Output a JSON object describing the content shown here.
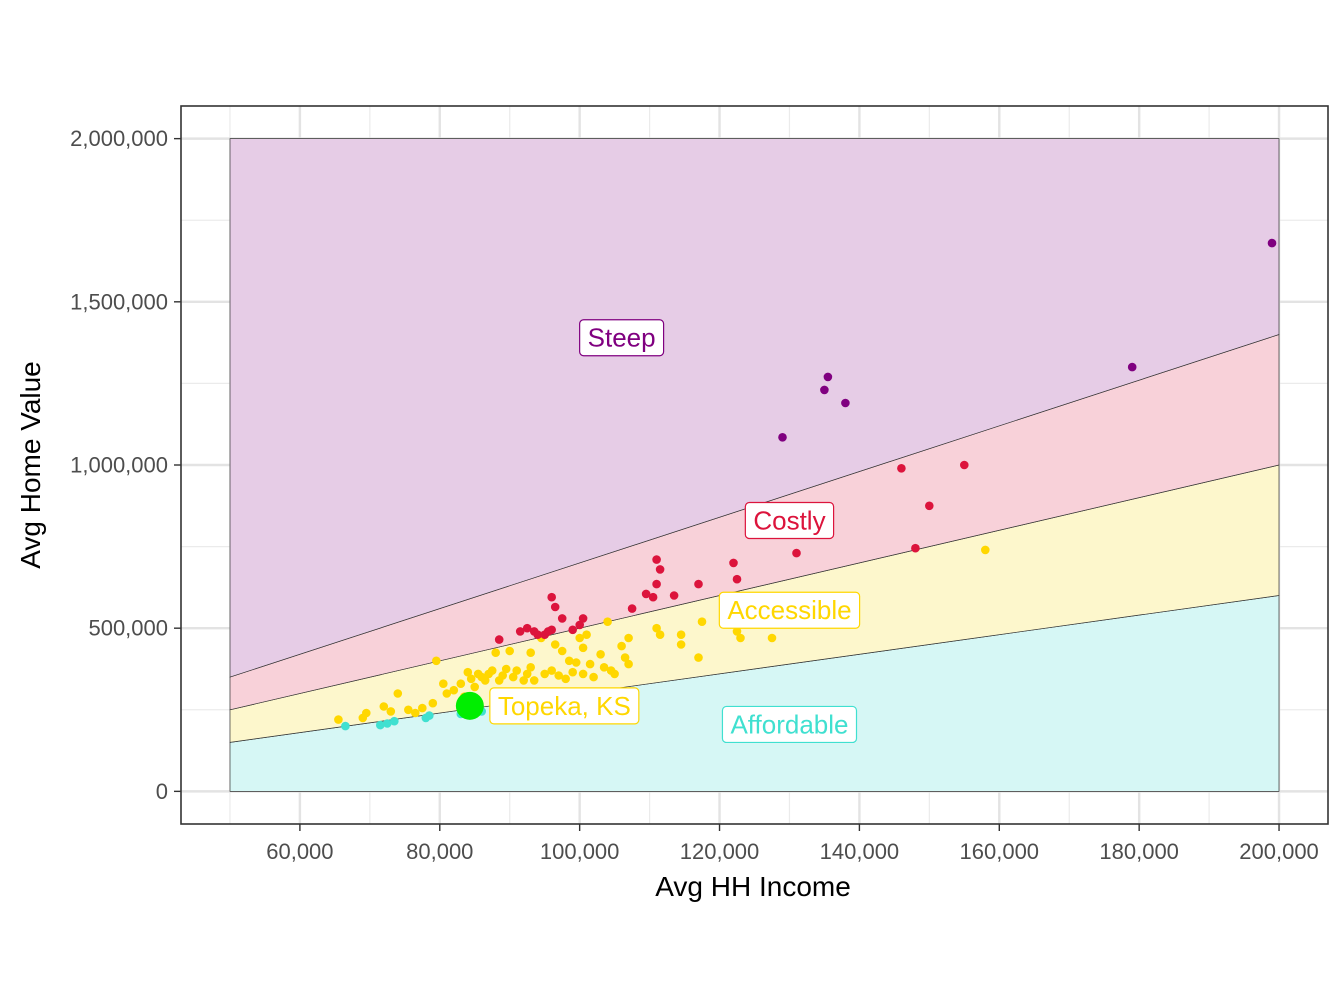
{
  "chart_data": {
    "type": "scatter",
    "title": "",
    "xlabel": "Avg HH Income",
    "ylabel": "Avg Home Value",
    "xlim": [
      43000,
      207000
    ],
    "ylim": [
      -100000,
      2100000
    ],
    "x_ticks": [
      60000,
      80000,
      100000,
      120000,
      140000,
      160000,
      180000,
      200000
    ],
    "x_tick_labels": [
      "60,000",
      "80,000",
      "100,000",
      "120,000",
      "140,000",
      "160,000",
      "180,000",
      "200,000"
    ],
    "y_ticks": [
      0,
      500000,
      1000000,
      1500000,
      2000000
    ],
    "y_tick_labels": [
      "0",
      "500,000",
      "1,000,000",
      "1,500,000",
      "2,000,000"
    ],
    "grid": true,
    "zones": [
      {
        "name": "Affordable",
        "x_range": [
          50000,
          200000
        ],
        "lower_ratio": 0,
        "upper_ratio": 3,
        "fill": "#d6f7f5",
        "text_color": "#40e0d0",
        "label_at": [
          130000,
          205000
        ]
      },
      {
        "name": "Accessible",
        "x_range": [
          50000,
          200000
        ],
        "lower_ratio": 3,
        "upper_ratio": 5,
        "fill": "#fdf7cc",
        "text_color": "#ffd700",
        "label_at": [
          130000,
          555000
        ]
      },
      {
        "name": "Costly",
        "x_range": [
          50000,
          200000
        ],
        "lower_ratio": 5,
        "upper_ratio": 7,
        "fill": "#f8d1d9",
        "text_color": "#dc143c",
        "label_at": [
          130000,
          830000
        ]
      },
      {
        "name": "Steep",
        "x_range": [
          50000,
          200000
        ],
        "lower_ratio": 7,
        "upper_value": 2000000,
        "fill": "#e6cce6",
        "text_color": "#800080",
        "label_at": [
          106000,
          1390000
        ]
      }
    ],
    "series": [
      {
        "name": "Affordable",
        "color": "#40e0d0",
        "points": [
          [
            66500,
            200000
          ],
          [
            71500,
            203000
          ],
          [
            72500,
            208000
          ],
          [
            73500,
            215000
          ],
          [
            78000,
            225000
          ],
          [
            78500,
            232000
          ],
          [
            83000,
            237000
          ],
          [
            86000,
            245000
          ]
        ]
      },
      {
        "name": "Accessible",
        "color": "#ffd700",
        "points": [
          [
            65500,
            220000
          ],
          [
            69000,
            225000
          ],
          [
            69500,
            240000
          ],
          [
            72000,
            260000
          ],
          [
            73000,
            245000
          ],
          [
            74000,
            300000
          ],
          [
            75500,
            250000
          ],
          [
            76500,
            240000
          ],
          [
            77500,
            255000
          ],
          [
            79000,
            270000
          ],
          [
            79500,
            400000
          ],
          [
            80500,
            330000
          ],
          [
            81000,
            300000
          ],
          [
            82000,
            310000
          ],
          [
            83000,
            330000
          ],
          [
            83500,
            290000
          ],
          [
            84000,
            365000
          ],
          [
            84500,
            345000
          ],
          [
            85000,
            320000
          ],
          [
            85500,
            360000
          ],
          [
            86000,
            350000
          ],
          [
            86500,
            340000
          ],
          [
            87000,
            360000
          ],
          [
            87500,
            370000
          ],
          [
            88000,
            425000
          ],
          [
            88500,
            340000
          ],
          [
            89000,
            355000
          ],
          [
            89500,
            375000
          ],
          [
            90000,
            430000
          ],
          [
            90500,
            350000
          ],
          [
            91000,
            370000
          ],
          [
            92000,
            340000
          ],
          [
            92500,
            360000
          ],
          [
            93000,
            425000
          ],
          [
            93000,
            380000
          ],
          [
            93500,
            340000
          ],
          [
            94500,
            470000
          ],
          [
            95000,
            360000
          ],
          [
            96000,
            370000
          ],
          [
            96500,
            450000
          ],
          [
            97000,
            355000
          ],
          [
            97500,
            430000
          ],
          [
            98000,
            345000
          ],
          [
            98500,
            400000
          ],
          [
            99000,
            365000
          ],
          [
            99500,
            395000
          ],
          [
            100000,
            470000
          ],
          [
            100500,
            440000
          ],
          [
            100500,
            360000
          ],
          [
            101000,
            480000
          ],
          [
            101500,
            390000
          ],
          [
            102000,
            350000
          ],
          [
            103000,
            420000
          ],
          [
            103500,
            380000
          ],
          [
            104000,
            520000
          ],
          [
            104500,
            370000
          ],
          [
            105000,
            360000
          ],
          [
            106000,
            445000
          ],
          [
            106500,
            410000
          ],
          [
            107000,
            470000
          ],
          [
            107000,
            390000
          ],
          [
            111000,
            500000
          ],
          [
            111500,
            480000
          ],
          [
            114500,
            480000
          ],
          [
            114500,
            450000
          ],
          [
            117000,
            410000
          ],
          [
            117500,
            520000
          ],
          [
            121500,
            515000
          ],
          [
            122500,
            490000
          ],
          [
            123000,
            470000
          ],
          [
            124000,
            555000
          ],
          [
            127000,
            550000
          ],
          [
            127500,
            470000
          ],
          [
            158000,
            740000
          ]
        ]
      },
      {
        "name": "Costly",
        "color": "#dc143c",
        "points": [
          [
            88500,
            465000
          ],
          [
            91500,
            490000
          ],
          [
            92500,
            500000
          ],
          [
            93500,
            490000
          ],
          [
            94000,
            480000
          ],
          [
            95000,
            480000
          ],
          [
            95500,
            490000
          ],
          [
            96000,
            495000
          ],
          [
            96000,
            595000
          ],
          [
            96500,
            565000
          ],
          [
            97500,
            530000
          ],
          [
            99000,
            495000
          ],
          [
            100000,
            510000
          ],
          [
            100500,
            530000
          ],
          [
            107500,
            560000
          ],
          [
            109500,
            605000
          ],
          [
            110500,
            595000
          ],
          [
            111000,
            710000
          ],
          [
            111000,
            635000
          ],
          [
            111500,
            680000
          ],
          [
            113500,
            600000
          ],
          [
            117000,
            635000
          ],
          [
            122000,
            700000
          ],
          [
            122500,
            650000
          ],
          [
            131000,
            730000
          ],
          [
            146000,
            990000
          ],
          [
            148000,
            745000
          ],
          [
            150000,
            875000
          ],
          [
            155000,
            1000000
          ]
        ]
      },
      {
        "name": "Steep",
        "color": "#800080",
        "points": [
          [
            129000,
            1085000
          ],
          [
            135000,
            1230000
          ],
          [
            135500,
            1270000
          ],
          [
            138000,
            1190000
          ],
          [
            179000,
            1300000
          ],
          [
            199000,
            1680000
          ]
        ]
      }
    ],
    "highlight": {
      "label": "Topeka, KS",
      "x": 84300,
      "y": 262000,
      "color": "#00ee00",
      "label_color": "#ffd700"
    }
  }
}
